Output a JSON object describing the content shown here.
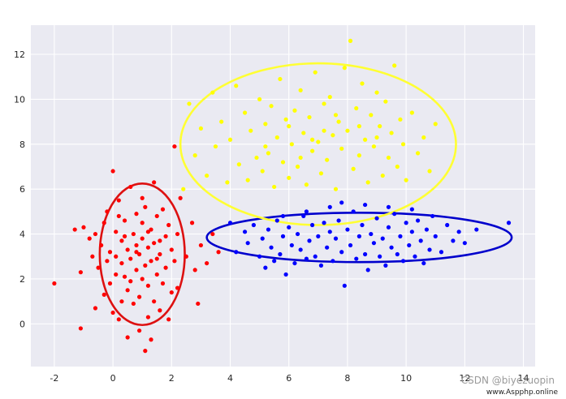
{
  "chart_data": {
    "type": "scatter",
    "title": "",
    "xlabel": "",
    "ylabel": "",
    "xlim": [
      -2.8,
      14.4
    ],
    "ylim": [
      -1.9,
      13.3
    ],
    "xticks": [
      -2,
      0,
      2,
      4,
      6,
      8,
      10,
      12,
      14
    ],
    "yticks": [
      0,
      2,
      4,
      6,
      8,
      10,
      12
    ],
    "grid": true,
    "background": "#eaeaf2",
    "series": [
      {
        "color": "#ff0000",
        "points": [
          [
            -2.0,
            1.8
          ],
          [
            -1.3,
            4.2
          ],
          [
            -1.1,
            -0.2
          ],
          [
            -1.1,
            2.3
          ],
          [
            -1.0,
            4.3
          ],
          [
            -0.8,
            3.8
          ],
          [
            -0.7,
            3.0
          ],
          [
            -0.6,
            4.0
          ],
          [
            -0.5,
            2.5
          ],
          [
            -0.4,
            3.5
          ],
          [
            -0.3,
            1.3
          ],
          [
            -0.3,
            4.5
          ],
          [
            -0.2,
            2.8
          ],
          [
            -0.2,
            5.0
          ],
          [
            -0.1,
            3.2
          ],
          [
            -0.1,
            1.8
          ],
          [
            0.0,
            0.5
          ],
          [
            0.0,
            6.8
          ],
          [
            0.1,
            2.2
          ],
          [
            0.1,
            4.1
          ],
          [
            0.1,
            3.0
          ],
          [
            0.2,
            0.2
          ],
          [
            0.2,
            5.5
          ],
          [
            0.3,
            2.7
          ],
          [
            0.3,
            3.7
          ],
          [
            0.3,
            1.0
          ],
          [
            0.4,
            4.6
          ],
          [
            0.4,
            2.1
          ],
          [
            0.5,
            -0.6
          ],
          [
            0.5,
            3.3
          ],
          [
            0.5,
            1.5
          ],
          [
            0.6,
            6.1
          ],
          [
            0.6,
            2.9
          ],
          [
            0.7,
            4.0
          ],
          [
            0.7,
            0.9
          ],
          [
            0.8,
            3.5
          ],
          [
            0.8,
            2.4
          ],
          [
            0.8,
            4.9
          ],
          [
            0.9,
            1.2
          ],
          [
            0.9,
            3.1
          ],
          [
            0.9,
            -0.3
          ],
          [
            1.0,
            4.5
          ],
          [
            1.0,
            2.0
          ],
          [
            1.0,
            3.8
          ],
          [
            1.1,
            -1.2
          ],
          [
            1.1,
            2.6
          ],
          [
            1.1,
            5.2
          ],
          [
            1.2,
            0.3
          ],
          [
            1.2,
            3.4
          ],
          [
            1.2,
            1.7
          ],
          [
            1.3,
            4.2
          ],
          [
            1.3,
            -0.7
          ],
          [
            1.3,
            2.8
          ],
          [
            1.4,
            6.3
          ],
          [
            1.4,
            3.6
          ],
          [
            1.4,
            1.0
          ],
          [
            1.5,
            4.8
          ],
          [
            1.5,
            2.2
          ],
          [
            1.6,
            3.1
          ],
          [
            1.6,
            0.6
          ],
          [
            1.7,
            5.1
          ],
          [
            1.7,
            1.8
          ],
          [
            1.8,
            3.9
          ],
          [
            1.8,
            2.5
          ],
          [
            1.9,
            0.2
          ],
          [
            1.9,
            4.4
          ],
          [
            2.0,
            1.4
          ],
          [
            2.0,
            3.3
          ],
          [
            2.1,
            2.8
          ],
          [
            2.1,
            7.9
          ],
          [
            2.2,
            4.0
          ],
          [
            2.2,
            1.6
          ],
          [
            2.3,
            5.6
          ],
          [
            2.5,
            3.0
          ],
          [
            2.7,
            4.5
          ],
          [
            2.8,
            2.4
          ],
          [
            2.9,
            0.9
          ],
          [
            3.0,
            3.5
          ],
          [
            3.2,
            2.7
          ],
          [
            3.4,
            4.0
          ],
          [
            3.6,
            3.2
          ],
          [
            -0.6,
            0.7
          ],
          [
            0.2,
            4.8
          ],
          [
            0.6,
            1.9
          ],
          [
            1.0,
            5.6
          ],
          [
            1.5,
            2.9
          ],
          [
            0.4,
            3.9
          ],
          [
            0.8,
            3.2
          ],
          [
            1.2,
            4.1
          ],
          [
            1.6,
            3.7
          ]
        ]
      },
      {
        "color": "#0000ff",
        "points": [
          [
            4.0,
            4.5
          ],
          [
            4.2,
            3.2
          ],
          [
            4.5,
            4.1
          ],
          [
            4.6,
            3.6
          ],
          [
            4.8,
            4.4
          ],
          [
            5.0,
            3.0
          ],
          [
            5.1,
            3.8
          ],
          [
            5.2,
            2.5
          ],
          [
            5.3,
            4.2
          ],
          [
            5.4,
            3.4
          ],
          [
            5.5,
            2.8
          ],
          [
            5.6,
            4.6
          ],
          [
            5.7,
            3.1
          ],
          [
            5.8,
            3.9
          ],
          [
            5.9,
            2.2
          ],
          [
            6.0,
            4.3
          ],
          [
            6.1,
            3.5
          ],
          [
            6.2,
            2.7
          ],
          [
            6.3,
            4.0
          ],
          [
            6.4,
            3.3
          ],
          [
            6.5,
            4.8
          ],
          [
            6.6,
            2.9
          ],
          [
            6.7,
            3.7
          ],
          [
            6.8,
            4.4
          ],
          [
            6.9,
            3.0
          ],
          [
            7.0,
            3.9
          ],
          [
            7.1,
            2.6
          ],
          [
            7.2,
            4.5
          ],
          [
            7.3,
            3.4
          ],
          [
            7.4,
            4.1
          ],
          [
            7.5,
            2.8
          ],
          [
            7.6,
            3.8
          ],
          [
            7.7,
            4.6
          ],
          [
            7.8,
            3.2
          ],
          [
            7.9,
            1.7
          ],
          [
            8.0,
            4.2
          ],
          [
            8.1,
            3.5
          ],
          [
            8.2,
            5.0
          ],
          [
            8.3,
            2.9
          ],
          [
            8.4,
            3.9
          ],
          [
            8.5,
            4.4
          ],
          [
            8.6,
            3.1
          ],
          [
            8.7,
            2.4
          ],
          [
            8.8,
            4.0
          ],
          [
            8.9,
            3.6
          ],
          [
            9.0,
            4.7
          ],
          [
            9.1,
            3.0
          ],
          [
            9.2,
            3.8
          ],
          [
            9.3,
            2.6
          ],
          [
            9.4,
            4.3
          ],
          [
            9.5,
            3.4
          ],
          [
            9.6,
            4.9
          ],
          [
            9.7,
            3.1
          ],
          [
            9.8,
            3.9
          ],
          [
            9.9,
            2.8
          ],
          [
            10.0,
            4.5
          ],
          [
            10.1,
            3.5
          ],
          [
            10.2,
            4.1
          ],
          [
            10.3,
            3.0
          ],
          [
            10.4,
            4.6
          ],
          [
            10.5,
            3.7
          ],
          [
            10.6,
            2.7
          ],
          [
            10.7,
            4.2
          ],
          [
            10.8,
            3.3
          ],
          [
            10.9,
            4.8
          ],
          [
            11.0,
            3.9
          ],
          [
            11.2,
            3.2
          ],
          [
            11.4,
            4.4
          ],
          [
            11.6,
            3.7
          ],
          [
            11.8,
            4.1
          ],
          [
            12.0,
            3.6
          ],
          [
            12.4,
            4.2
          ],
          [
            13.5,
            4.5
          ],
          [
            5.8,
            4.8
          ],
          [
            6.6,
            5.0
          ],
          [
            7.4,
            5.2
          ],
          [
            7.8,
            5.4
          ],
          [
            8.6,
            5.3
          ],
          [
            9.4,
            5.2
          ],
          [
            10.2,
            5.1
          ]
        ]
      },
      {
        "color": "#ffff00",
        "points": [
          [
            2.4,
            6.0
          ],
          [
            2.6,
            9.8
          ],
          [
            2.8,
            7.5
          ],
          [
            3.0,
            8.7
          ],
          [
            3.2,
            6.6
          ],
          [
            3.4,
            10.3
          ],
          [
            3.5,
            7.9
          ],
          [
            3.7,
            9.0
          ],
          [
            3.9,
            6.3
          ],
          [
            4.0,
            8.2
          ],
          [
            4.2,
            10.6
          ],
          [
            4.3,
            7.1
          ],
          [
            4.5,
            9.4
          ],
          [
            4.6,
            6.4
          ],
          [
            4.7,
            8.6
          ],
          [
            4.9,
            7.4
          ],
          [
            5.0,
            10.0
          ],
          [
            5.1,
            6.8
          ],
          [
            5.2,
            8.9
          ],
          [
            5.3,
            7.6
          ],
          [
            5.4,
            9.7
          ],
          [
            5.5,
            6.1
          ],
          [
            5.6,
            8.3
          ],
          [
            5.7,
            10.9
          ],
          [
            5.8,
            7.2
          ],
          [
            5.9,
            9.1
          ],
          [
            6.0,
            6.5
          ],
          [
            6.1,
            8.0
          ],
          [
            6.2,
            9.5
          ],
          [
            6.3,
            7.0
          ],
          [
            6.4,
            10.4
          ],
          [
            6.5,
            8.5
          ],
          [
            6.6,
            6.2
          ],
          [
            6.7,
            9.2
          ],
          [
            6.8,
            7.7
          ],
          [
            6.9,
            11.2
          ],
          [
            7.0,
            8.1
          ],
          [
            7.1,
            6.7
          ],
          [
            7.2,
            9.8
          ],
          [
            7.3,
            7.3
          ],
          [
            7.4,
            10.1
          ],
          [
            7.5,
            8.4
          ],
          [
            7.6,
            6.0
          ],
          [
            7.7,
            9.0
          ],
          [
            7.8,
            7.8
          ],
          [
            7.9,
            11.4
          ],
          [
            8.0,
            8.6
          ],
          [
            8.1,
            12.6
          ],
          [
            8.2,
            6.9
          ],
          [
            8.3,
            9.6
          ],
          [
            8.4,
            7.5
          ],
          [
            8.5,
            10.7
          ],
          [
            8.6,
            8.2
          ],
          [
            8.7,
            6.3
          ],
          [
            8.8,
            9.3
          ],
          [
            8.9,
            7.9
          ],
          [
            9.0,
            10.3
          ],
          [
            9.1,
            8.8
          ],
          [
            9.2,
            6.6
          ],
          [
            9.3,
            9.9
          ],
          [
            9.4,
            7.4
          ],
          [
            9.5,
            8.5
          ],
          [
            9.6,
            11.5
          ],
          [
            9.7,
            7.0
          ],
          [
            9.8,
            9.1
          ],
          [
            9.9,
            8.0
          ],
          [
            10.0,
            6.4
          ],
          [
            10.2,
            9.4
          ],
          [
            10.4,
            7.6
          ],
          [
            10.6,
            8.3
          ],
          [
            10.8,
            6.8
          ],
          [
            11.0,
            8.9
          ],
          [
            5.2,
            7.9
          ],
          [
            6.0,
            8.8
          ],
          [
            6.8,
            8.2
          ],
          [
            7.6,
            9.3
          ],
          [
            8.4,
            8.8
          ],
          [
            9.0,
            8.3
          ],
          [
            6.4,
            7.4
          ],
          [
            7.2,
            8.6
          ]
        ]
      }
    ],
    "ellipses": [
      {
        "color": "#dd1111",
        "center": [
          1.0,
          3.1
        ],
        "rx": 1.45,
        "ry": 3.15
      },
      {
        "color": "#0000cc",
        "center": [
          8.4,
          3.85
        ],
        "rx": 5.2,
        "ry": 1.1
      },
      {
        "color": "#ffff33",
        "center": [
          7.0,
          8.0
        ],
        "rx": 4.7,
        "ry": 3.6
      }
    ]
  },
  "watermark": {
    "csdn": "CSDN @biyezuopin",
    "site": "www.Aspphp.online"
  }
}
